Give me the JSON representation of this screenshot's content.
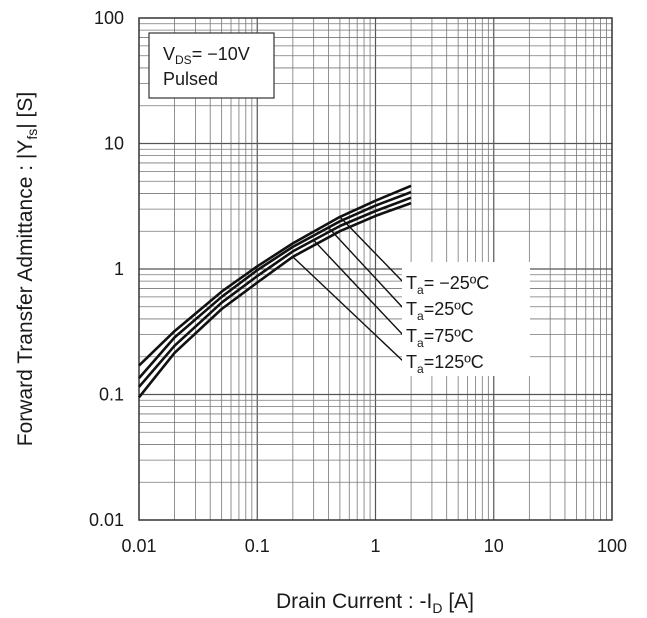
{
  "chart_data": {
    "type": "line",
    "x_scale": "log",
    "y_scale": "log",
    "xlim": [
      0.01,
      100
    ],
    "ylim": [
      0.01,
      100
    ],
    "grid": true,
    "x_ticks": [
      "0.01",
      "0.1",
      "1",
      "10",
      "100"
    ],
    "y_ticks": [
      "100",
      "10",
      "1",
      "0.1",
      "0.01"
    ],
    "xlabel": {
      "main": "Drain Current : -I",
      "sub": "D",
      "unit": " [A]"
    },
    "ylabel": {
      "main": "Forward Transfer Admittance : |Y",
      "sub": "fs",
      "unit": "| [S]"
    },
    "conditions": {
      "vds_prefix": "V",
      "vds_sub": "DS",
      "vds_value": "= −10V",
      "mode": "Pulsed"
    },
    "series": [
      {
        "name": "Ta= −25ºC",
        "label_main": "T",
        "label_sub": "a",
        "label_rest": "= −25ºC",
        "x": [
          0.01,
          0.02,
          0.05,
          0.1,
          0.2,
          0.5,
          1,
          2
        ],
        "y": [
          0.17,
          0.32,
          0.66,
          1.05,
          1.6,
          2.6,
          3.5,
          4.6
        ]
      },
      {
        "name": "Ta=25ºC",
        "label_main": "T",
        "label_sub": "a",
        "label_rest": "=25ºC",
        "x": [
          0.01,
          0.02,
          0.05,
          0.1,
          0.2,
          0.5,
          1,
          2
        ],
        "y": [
          0.135,
          0.285,
          0.6,
          0.98,
          1.5,
          2.4,
          3.2,
          4.1
        ]
      },
      {
        "name": "Ta=75ºC",
        "label_main": "T",
        "label_sub": "a",
        "label_rest": "=75ºC",
        "x": [
          0.01,
          0.02,
          0.05,
          0.1,
          0.2,
          0.5,
          1,
          2
        ],
        "y": [
          0.115,
          0.245,
          0.54,
          0.88,
          1.38,
          2.2,
          2.9,
          3.7
        ]
      },
      {
        "name": "Ta=125ºC",
        "label_main": "T",
        "label_sub": "a",
        "label_rest": "=125ºC",
        "x": [
          0.01,
          0.02,
          0.05,
          0.1,
          0.2,
          0.5,
          1,
          2
        ],
        "y": [
          0.095,
          0.215,
          0.48,
          0.78,
          1.25,
          2.0,
          2.65,
          3.35
        ]
      }
    ],
    "legend_pointer_x": [
      0.5,
      0.4,
      0.3,
      0.2
    ]
  }
}
